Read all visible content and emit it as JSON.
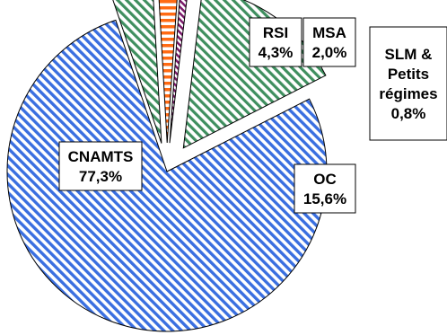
{
  "chart_data": {
    "type": "pie",
    "title": "",
    "legend": "none",
    "slices": [
      {
        "label": "CNAMTS",
        "value_label": "77,3%",
        "value": 77.3,
        "color": "#3a6fe0",
        "pattern": "diagonal-stripes",
        "exploded": false
      },
      {
        "label": "RSI",
        "value_label": "4,3%",
        "value": 4.3,
        "color": "#3f8f5f",
        "pattern": "diagonal-stripes",
        "exploded": true
      },
      {
        "label": "MSA",
        "value_label": "2,0%",
        "value": 2.0,
        "color": "#ff6a13",
        "pattern": "horizontal-stripes",
        "exploded": true
      },
      {
        "label": "SLM & Petits régimes",
        "value_label": "0,8%",
        "value": 0.8,
        "color": "#7a1a6a",
        "pattern": "diagonal-stripes",
        "exploded": true
      },
      {
        "label": "OC",
        "value_label": "15,6%",
        "value": 15.6,
        "color": "#3f8f5f",
        "pattern": "diagonal-stripes",
        "exploded": true
      }
    ]
  }
}
